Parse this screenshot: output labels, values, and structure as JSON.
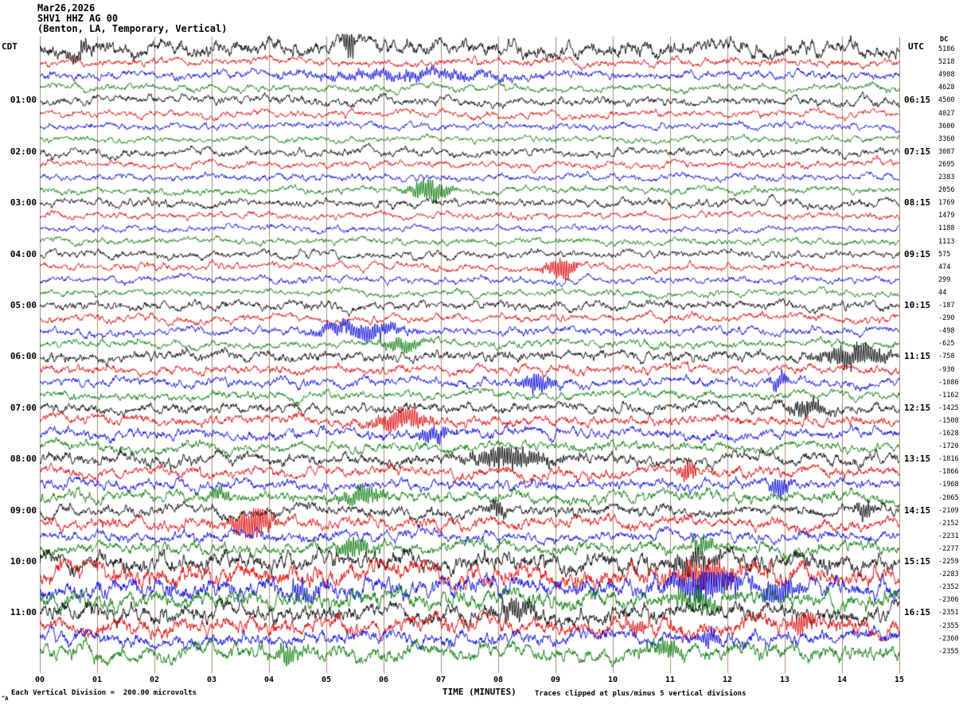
{
  "header": {
    "date": "Mar26,2026",
    "station": "SHV1 HHZ AG 00",
    "location": "(Benton, LA, Temporary, Vertical)"
  },
  "axes": {
    "left_title": "CDT",
    "right_title": "UTC",
    "dc_header": "DC"
  },
  "footer": {
    "division_note": "Each Vertical Division =  200.00 microvolts",
    "axis_label": "TIME (MINUTES)",
    "clip_note": "Traces clipped at plus/minus 5 vertical divisions",
    "corner_mark": "^A"
  },
  "colors": {
    "grid": "#aa8c78",
    "text": "#000000"
  },
  "chart_data": {
    "type": "line",
    "subtype": "helicorder-seismogram",
    "title": "SHV1 HHZ AG 00 (Benton, LA, Temporary, Vertical) Mar26,2026",
    "xlabel": "TIME (MINUTES)",
    "x_range_minutes": [
      0,
      15
    ],
    "minute_labels": [
      "00",
      "01",
      "02",
      "03",
      "04",
      "05",
      "06",
      "07",
      "08",
      "09",
      "10",
      "11",
      "12",
      "13",
      "14",
      "15"
    ],
    "minutes_per_line": 15,
    "num_rows": 48,
    "trace_colors": [
      "#000000",
      "#dd0000",
      "#0000dd",
      "#007700"
    ],
    "clip_note_divisions": 5,
    "microvolts_per_division": 200.0,
    "hour_rows": [
      {
        "row": 4,
        "cdt": "01:00",
        "utc": "06:15"
      },
      {
        "row": 8,
        "cdt": "02:00",
        "utc": "07:15"
      },
      {
        "row": 12,
        "cdt": "03:00",
        "utc": "08:15"
      },
      {
        "row": 16,
        "cdt": "04:00",
        "utc": "09:15"
      },
      {
        "row": 20,
        "cdt": "05:00",
        "utc": "10:15"
      },
      {
        "row": 24,
        "cdt": "06:00",
        "utc": "11:15"
      },
      {
        "row": 28,
        "cdt": "07:00",
        "utc": "12:15"
      },
      {
        "row": 32,
        "cdt": "08:00",
        "utc": "13:15"
      },
      {
        "row": 36,
        "cdt": "09:00",
        "utc": "14:15"
      },
      {
        "row": 40,
        "cdt": "10:00",
        "utc": "15:15"
      },
      {
        "row": 44,
        "cdt": "11:00",
        "utc": "16:15"
      }
    ],
    "dc_offsets": [
      5186,
      5218,
      4988,
      4628,
      4500,
      4027,
      3600,
      3360,
      3087,
      2695,
      2383,
      2056,
      1769,
      1479,
      1188,
      1113,
      575,
      474,
      299,
      44,
      -187,
      -290,
      -498,
      -625,
      -758,
      -930,
      -1086,
      -1162,
      -1425,
      -1508,
      -1628,
      -1720,
      -1816,
      -1866,
      -1968,
      -2065,
      -2109,
      -2152,
      -2231,
      -2277,
      -2259,
      -2283,
      -2352,
      -2306,
      -2351,
      -2355,
      -2360,
      -2355
    ],
    "row_amps": [
      4.6,
      2.2,
      2.4,
      2.0,
      2.6,
      2.0,
      1.9,
      1.8,
      2.4,
      2.0,
      2.0,
      2.0,
      2.4,
      1.9,
      1.8,
      1.9,
      2.2,
      2.0,
      2.0,
      1.9,
      2.6,
      2.2,
      2.4,
      2.2,
      3.0,
      2.6,
      2.6,
      2.4,
      3.0,
      3.0,
      3.0,
      2.8,
      3.4,
      3.0,
      3.0,
      3.2,
      3.2,
      3.4,
      3.0,
      3.4,
      5.5,
      6.0,
      5.5,
      5.0,
      5.0,
      5.0,
      4.0,
      4.5
    ],
    "events": [
      [
        0,
        5.4,
        0.12,
        16
      ],
      [
        0,
        0.7,
        0.3,
        6
      ],
      [
        2,
        6.5,
        2.0,
        4
      ],
      [
        11,
        6.8,
        0.35,
        11
      ],
      [
        17,
        9.1,
        0.25,
        12
      ],
      [
        22,
        5.6,
        0.7,
        9
      ],
      [
        23,
        6.3,
        0.4,
        6
      ],
      [
        24,
        14.2,
        0.6,
        10
      ],
      [
        26,
        8.7,
        0.3,
        9
      ],
      [
        26,
        12.9,
        0.15,
        8
      ],
      [
        28,
        13.4,
        0.4,
        8
      ],
      [
        29,
        6.3,
        0.5,
        11
      ],
      [
        30,
        6.9,
        0.3,
        7
      ],
      [
        32,
        8.2,
        0.7,
        10
      ],
      [
        33,
        11.3,
        0.15,
        10
      ],
      [
        34,
        12.9,
        0.2,
        9
      ],
      [
        35,
        3.1,
        0.2,
        7
      ],
      [
        35,
        5.6,
        0.4,
        9
      ],
      [
        36,
        8.0,
        0.15,
        9
      ],
      [
        36,
        14.4,
        0.2,
        8
      ],
      [
        37,
        3.7,
        0.35,
        16
      ],
      [
        39,
        5.5,
        0.3,
        10
      ],
      [
        39,
        11.6,
        0.2,
        8
      ],
      [
        40,
        11.4,
        0.4,
        10
      ],
      [
        41,
        11.6,
        0.5,
        14
      ],
      [
        42,
        4.6,
        0.25,
        10
      ],
      [
        42,
        11.6,
        0.6,
        16
      ],
      [
        42,
        12.9,
        0.3,
        12
      ],
      [
        43,
        11.5,
        0.4,
        10
      ],
      [
        44,
        8.3,
        0.4,
        9
      ],
      [
        45,
        10.4,
        0.2,
        8
      ],
      [
        45,
        13.3,
        0.25,
        9
      ],
      [
        46,
        11.7,
        0.2,
        8
      ],
      [
        47,
        4.3,
        0.2,
        9
      ],
      [
        47,
        10.9,
        0.3,
        8
      ]
    ]
  }
}
